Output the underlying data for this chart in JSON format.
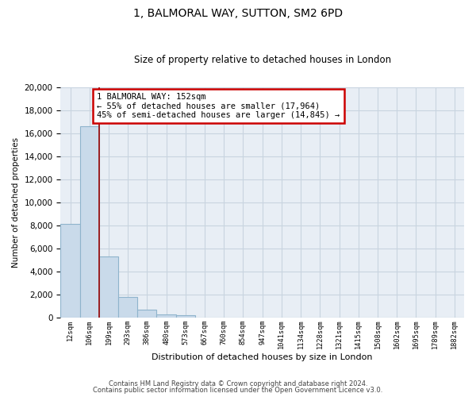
{
  "title": "1, BALMORAL WAY, SUTTON, SM2 6PD",
  "subtitle": "Size of property relative to detached houses in London",
  "xlabel": "Distribution of detached houses by size in London",
  "ylabel": "Number of detached properties",
  "bar_labels": [
    "12sqm",
    "106sqm",
    "199sqm",
    "293sqm",
    "386sqm",
    "480sqm",
    "573sqm",
    "667sqm",
    "760sqm",
    "854sqm",
    "947sqm",
    "1041sqm",
    "1134sqm",
    "1228sqm",
    "1321sqm",
    "1415sqm",
    "1508sqm",
    "1602sqm",
    "1695sqm",
    "1789sqm",
    "1882sqm"
  ],
  "bar_values": [
    8100,
    16600,
    5300,
    1800,
    700,
    280,
    180,
    0,
    0,
    0,
    0,
    0,
    0,
    0,
    0,
    0,
    0,
    0,
    0,
    0,
    0
  ],
  "bar_color": "#c9daea",
  "bar_edge_color": "#8fb4cc",
  "annotation_title": "1 BALMORAL WAY: 152sqm",
  "annotation_line1": "← 55% of detached houses are smaller (17,964)",
  "annotation_line2": "45% of semi-detached houses are larger (14,845) →",
  "annotation_box_color": "#ffffff",
  "annotation_box_edge": "#cc0000",
  "vline_color": "#991111",
  "footer_line1": "Contains HM Land Registry data © Crown copyright and database right 2024.",
  "footer_line2": "Contains public sector information licensed under the Open Government Licence v3.0.",
  "ylim": [
    0,
    20000
  ],
  "yticks": [
    0,
    2000,
    4000,
    6000,
    8000,
    10000,
    12000,
    14000,
    16000,
    18000,
    20000
  ],
  "background_color": "#ffffff",
  "grid_color": "#c8d4e0",
  "plot_bg_color": "#e8eef5"
}
